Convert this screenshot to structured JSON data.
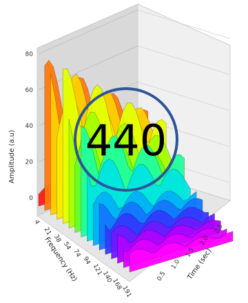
{
  "chart_data": {
    "type": "area",
    "subtype": "3d-waterfall",
    "title": "",
    "zlabel": "Amplitude (a.u)",
    "xlabel": "Frequency (Hz)",
    "ylabel": "Time (sec)",
    "z_ticks": [
      "0",
      "20",
      "40",
      "60",
      "80"
    ],
    "frequency_ticks": [
      "4",
      "21",
      "38",
      "54",
      "74",
      "94",
      "121",
      "140",
      "168",
      "191"
    ],
    "time_ticks": [
      "0.5",
      "1.0",
      "1.5",
      "2.0",
      "2.5"
    ],
    "zlim": [
      0,
      90
    ],
    "grid": true,
    "colormap": [
      "#ff1a1a",
      "#ffcc00",
      "#f5ff00",
      "#7dff00",
      "#00ffd5",
      "#009dff",
      "#3a2bff",
      "#b400ff",
      "#ff00ff"
    ],
    "series_peaks": [
      12,
      85,
      86,
      72,
      88,
      70,
      55,
      62,
      48,
      30,
      26,
      22,
      18,
      16,
      14,
      12
    ]
  },
  "overlay": {
    "badge_text": "440",
    "ring_color": "#2e5597"
  }
}
